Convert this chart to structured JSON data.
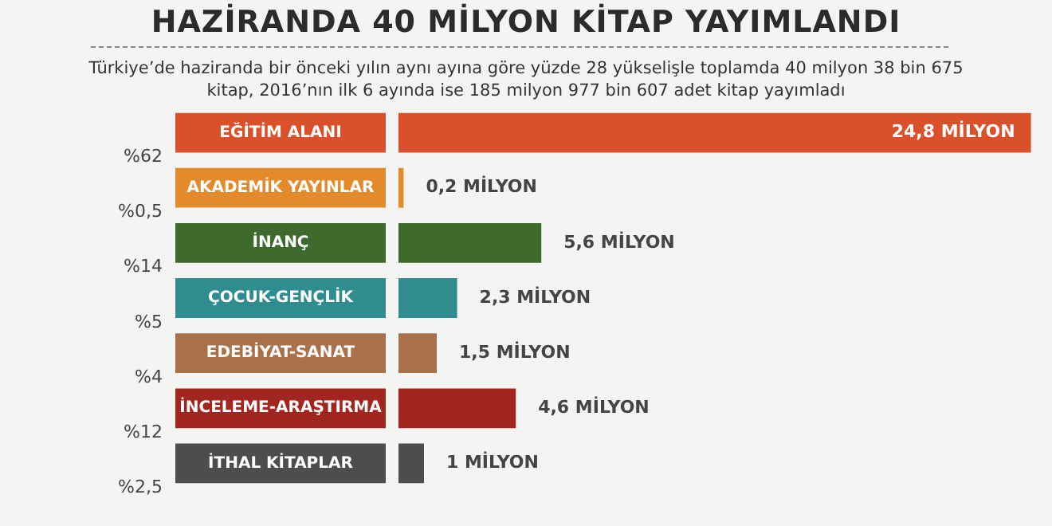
{
  "chart_data": {
    "type": "bar",
    "orientation": "horizontal",
    "title": "HAZİRANDA 40 MİLYON KİTAP YAYIMLANDI",
    "subtitle": "Türkiye’de haziranda bir önceki yılın aynı ayına göre yüzde 28 yükselişle toplamda 40 milyon 38 bin 675 kitap, 2016’nın ilk 6 ayında ise 185 milyon 977 bin 607 adet kitap yayımladı",
    "categories": [
      "EĞİTİM ALANI",
      "AKADEMİK YAYINLAR",
      "İNANÇ",
      "ÇOCUK-GENÇLİK",
      "EDEBİYAT-SANAT",
      "İNCELEME-ARAŞTIRMA",
      "İTHAL KİTAPLAR"
    ],
    "values": [
      24.8,
      0.2,
      5.6,
      2.3,
      1.5,
      4.6,
      1
    ],
    "colors": [
      "#d9502a",
      "#e28a2c",
      "#3f6a2e",
      "#2f8c8f",
      "#a8714a",
      "#a1261f",
      "#4d4d4f"
    ],
    "value_labels": [
      "24,8 MİLYON",
      "0,2 MİLYON",
      "5,6 MİLYON",
      "2,3 MİLYON",
      "1,5 MİLYON",
      "4,6 MİLYON",
      "1 MİLYON"
    ],
    "annotations": [
      "%62",
      "%0,5",
      "%14",
      "%5",
      "%4",
      "%12",
      "%2,5"
    ],
    "legend": false
  }
}
